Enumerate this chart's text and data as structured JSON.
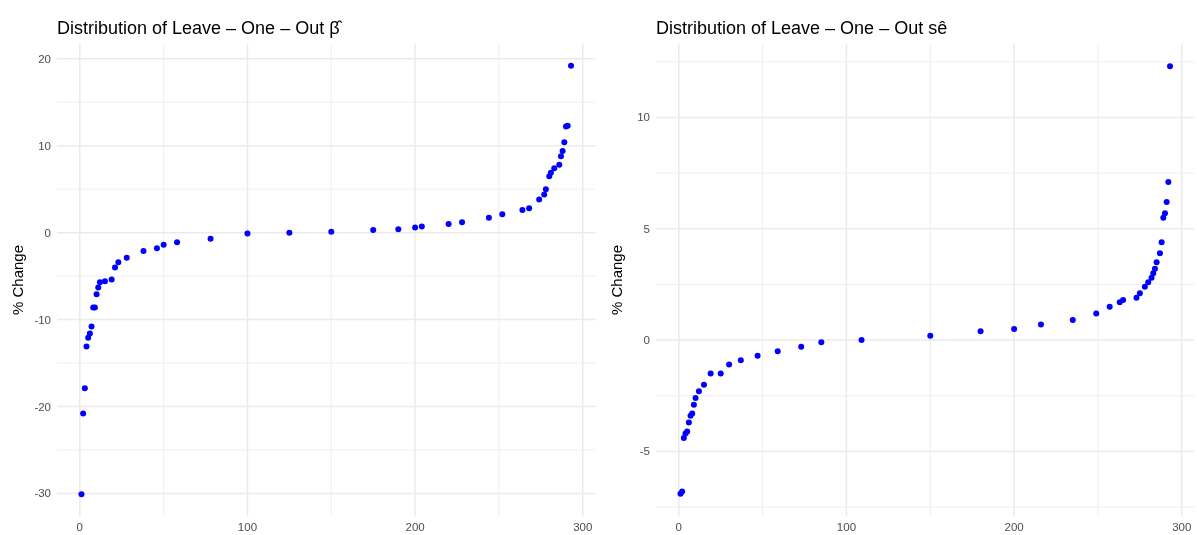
{
  "chart_data": [
    {
      "type": "scatter",
      "title": "Distribution of Leave – One – Out β̂",
      "ylabel": "% Change",
      "marker": "circle",
      "grid": true,
      "x": [
        1,
        2,
        3,
        4,
        5,
        6,
        7,
        8,
        9,
        10,
        11,
        12,
        15,
        19,
        21,
        23,
        28,
        38,
        46,
        50,
        58,
        78,
        100,
        125,
        150,
        175,
        190,
        200,
        204,
        220,
        228,
        244,
        252,
        264,
        268,
        274,
        277,
        278,
        280,
        281,
        283,
        286,
        287,
        288,
        289,
        290,
        291,
        293
      ],
      "series": [
        {
          "color": "#0000ff",
          "values": [
            -30.1,
            -20.8,
            -17.9,
            -13.1,
            -12.1,
            -11.6,
            -10.8,
            -8.6,
            -8.6,
            -7.1,
            -6.3,
            -5.7,
            -5.6,
            -5.4,
            -4.0,
            -3.4,
            -2.9,
            -2.1,
            -1.8,
            -1.4,
            -1.1,
            -0.7,
            -0.1,
            0.0,
            0.1,
            0.3,
            0.4,
            0.6,
            0.7,
            1.0,
            1.2,
            1.7,
            2.1,
            2.6,
            2.8,
            3.8,
            4.4,
            5.0,
            6.5,
            6.9,
            7.4,
            7.8,
            8.8,
            9.4,
            10.4,
            12.2,
            12.3,
            19.2
          ]
        }
      ],
      "xlim": [
        -13.6,
        307.6
      ],
      "ylim": [
        -32.6,
        21.7
      ],
      "xticks": [
        0,
        {
          "value": 50,
          "label": null
        },
        100,
        {
          "value": 150,
          "label": null
        },
        200,
        {
          "value": 250,
          "label": null
        },
        300
      ],
      "yticks": [
        -30,
        {
          "value": -25,
          "label": null
        },
        -20,
        {
          "value": -15,
          "label": null
        },
        -10,
        {
          "value": -5,
          "label": null
        },
        0,
        {
          "value": 5,
          "label": null
        },
        10,
        {
          "value": 15,
          "label": null
        },
        20
      ]
    },
    {
      "type": "scatter",
      "title": "Distribution of Leave – One – Out sê",
      "ylabel": "% Change",
      "marker": "circle",
      "grid": true,
      "x": [
        1,
        2,
        3,
        4,
        5,
        6,
        7,
        8,
        9,
        10,
        12,
        15,
        19,
        25,
        30,
        37,
        47,
        59,
        73,
        85,
        109,
        150,
        180,
        200,
        216,
        235,
        249,
        257,
        263,
        265,
        273,
        275,
        278,
        280,
        282,
        283,
        284,
        285,
        287,
        288,
        289,
        290,
        291,
        292,
        293
      ],
      "series": [
        {
          "color": "#0000ff",
          "values": [
            -6.9,
            -6.8,
            -4.4,
            -4.2,
            -4.1,
            -3.7,
            -3.4,
            -3.3,
            -2.9,
            -2.6,
            -2.3,
            -2.0,
            -1.5,
            -1.5,
            -1.1,
            -0.9,
            -0.7,
            -0.5,
            -0.3,
            -0.1,
            0.0,
            0.2,
            0.4,
            0.5,
            0.7,
            0.9,
            1.2,
            1.5,
            1.7,
            1.8,
            1.9,
            2.1,
            2.4,
            2.6,
            2.8,
            3.0,
            3.2,
            3.5,
            3.9,
            4.4,
            5.5,
            5.7,
            6.2,
            7.1,
            12.3
          ]
        }
      ],
      "xlim": [
        -13.6,
        307.6
      ],
      "ylim": [
        -7.9,
        13.3
      ],
      "xticks": [
        0,
        {
          "value": 50,
          "label": null
        },
        100,
        {
          "value": 150,
          "label": null
        },
        200,
        {
          "value": 250,
          "label": null
        },
        300
      ],
      "yticks": [
        {
          "value": -7.5,
          "label": null
        },
        -5,
        {
          "value": -2.5,
          "label": null
        },
        0,
        {
          "value": 2.5,
          "label": null
        },
        5,
        {
          "value": 7.5,
          "label": null
        },
        10,
        {
          "value": 12.5,
          "label": null
        }
      ]
    }
  ]
}
